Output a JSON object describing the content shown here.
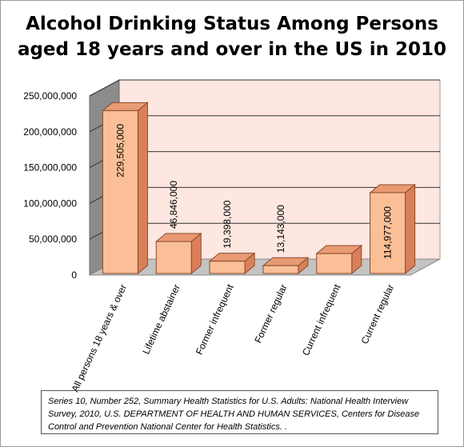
{
  "title_lines": [
    "Alcohol Drinking Status Among Persons",
    "aged 18 years and over in the US in 2010"
  ],
  "source_note": "Series 10, Number 252, Summary Health Statistics for U.S. Adults: National Health Interview Survey, 2010, U.S. DEPARTMENT OF HEALTH AND HUMAN SERVICES, Centers for Disease Control and Prevention National Center for Health Statistics. .",
  "colors": {
    "bar_front": "#fbbf97",
    "bar_side": "#d9805a",
    "bar_top": "#e89a73",
    "bar_edge": "#8a4a2a",
    "wall_back": "#fde7e0",
    "wall_side": "#8c8c8c",
    "floor": "#c3c3c3",
    "gridline": "#333333"
  },
  "chart_data": {
    "type": "bar",
    "title": "Alcohol Drinking Status Among Persons aged 18 years and over in the US in 2010",
    "categories": [
      "All persons 18 years & over",
      "Lifetime abstainer",
      "Former infrequent",
      "Former regular",
      "Current infrequent",
      "Current regular"
    ],
    "values": [
      229505000,
      46846000,
      19398000,
      13143000,
      30000000,
      114977000
    ],
    "data_labels": [
      "229,505,000",
      "46,846,000",
      "19,398,000",
      "13,143,000",
      "",
      "114,977,000"
    ],
    "ylim": [
      0,
      250000000
    ],
    "yticks": [
      0,
      50000000,
      100000000,
      150000000,
      200000000,
      250000000
    ],
    "ytick_labels": [
      "0",
      "50,000,000",
      "100,000,000",
      "150,000,000",
      "200,000,000",
      "250,000,000"
    ],
    "grid": true,
    "style": "3d"
  }
}
